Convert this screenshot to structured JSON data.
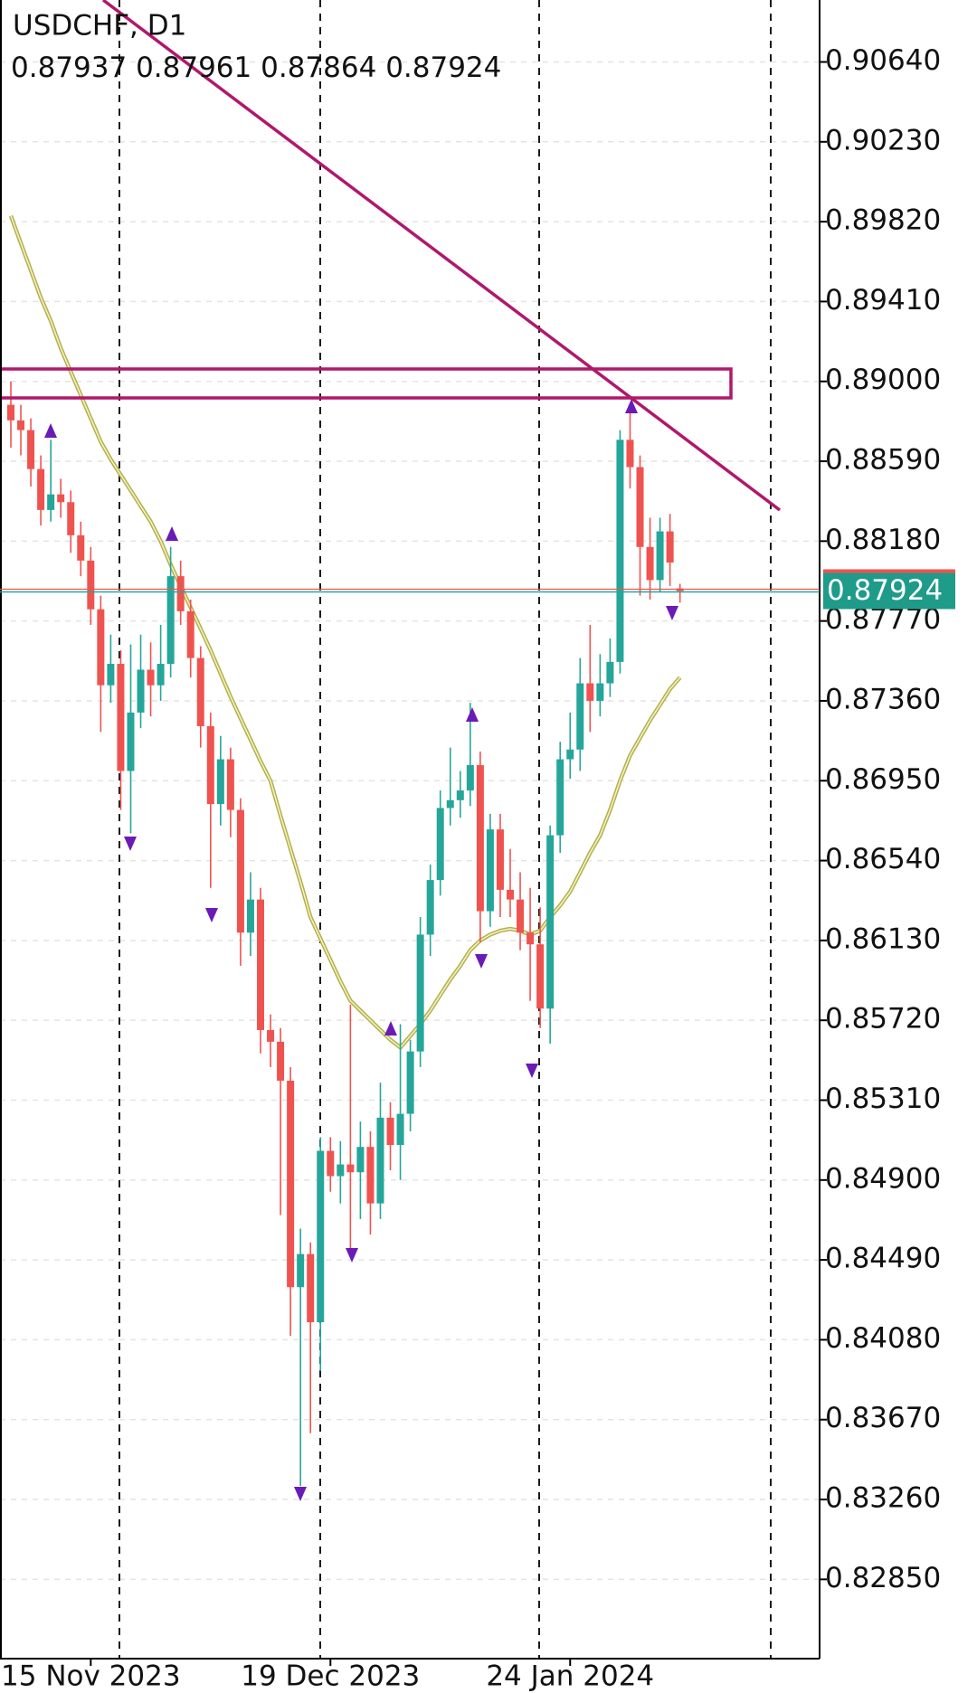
{
  "chart_data": {
    "type": "candlestick",
    "title": "USDCHF, D1",
    "up_color": "#26a69a",
    "down_color": "#ef5350",
    "categories": [
      null,
      null,
      null,
      null,
      null,
      null,
      null,
      null,
      "15 Nov 2023",
      null,
      null,
      null,
      null,
      null,
      null,
      null,
      null,
      null,
      null,
      null,
      null,
      null,
      null,
      null,
      null,
      null,
      null,
      null,
      null,
      null,
      null,
      null,
      "19 Dec 2023",
      null,
      null,
      null,
      null,
      null,
      null,
      null,
      null,
      null,
      null,
      null,
      null,
      null,
      null,
      null,
      null,
      null,
      null,
      null,
      null,
      null,
      null,
      null,
      "24 Jan 2024",
      null,
      null,
      null,
      null,
      null,
      null,
      null,
      null,
      null,
      null,
      null
    ],
    "open": [
      0.8888,
      0.888,
      0.8875,
      0.8855,
      0.8834,
      0.8842,
      0.8838,
      0.8821,
      0.8808,
      0.8783,
      0.8744,
      0.8755,
      0.87,
      0.873,
      0.8752,
      0.8744,
      0.8755,
      0.88,
      0.8782,
      0.8758,
      0.8723,
      0.8683,
      0.8706,
      0.868,
      0.8617,
      0.8634,
      0.8567,
      0.8561,
      0.8541,
      0.8435,
      0.8452,
      0.8417,
      0.8505,
      0.8492,
      0.8498,
      0.8494,
      0.8507,
      0.8478,
      0.8522,
      0.8508,
      0.8524,
      0.8556,
      0.8616,
      0.8644,
      0.8681,
      0.8685,
      0.869,
      0.8703,
      0.8628,
      0.867,
      0.8639,
      0.8634,
      0.8617,
      0.8611,
      0.8578,
      0.8667,
      0.8706,
      0.8711,
      0.8745,
      0.8736,
      0.8745,
      0.8756,
      0.887,
      0.8856,
      0.8815,
      0.8798,
      0.8823,
      0.87937
    ],
    "high": [
      0.89,
      0.8888,
      0.8881,
      0.8862,
      0.887,
      0.885,
      0.8844,
      0.8828,
      0.8815,
      0.879,
      0.877,
      0.8762,
      0.8765,
      0.877,
      0.8766,
      0.8775,
      0.8815,
      0.8808,
      0.8788,
      0.8764,
      0.873,
      0.8718,
      0.8712,
      0.8686,
      0.8648,
      0.864,
      0.8575,
      0.8568,
      0.8548,
      0.8465,
      0.8458,
      0.8512,
      0.8512,
      0.851,
      0.858,
      0.852,
      0.8515,
      0.854,
      0.853,
      0.857,
      0.8562,
      0.8625,
      0.8652,
      0.869,
      0.8712,
      0.87,
      0.8735,
      0.871,
      0.8678,
      0.8678,
      0.866,
      0.8648,
      0.864,
      0.863,
      0.8672,
      0.8715,
      0.873,
      0.8758,
      0.8775,
      0.876,
      0.8768,
      0.8875,
      0.8888,
      0.8862,
      0.883,
      0.883,
      0.8832,
      0.87961
    ],
    "low": [
      0.8866,
      0.8862,
      0.8846,
      0.8826,
      0.8828,
      0.883,
      0.8812,
      0.88,
      0.8775,
      0.872,
      0.8735,
      0.868,
      0.8668,
      0.8722,
      0.8728,
      0.8736,
      0.8748,
      0.8775,
      0.8748,
      0.8712,
      0.864,
      0.8672,
      0.8666,
      0.86,
      0.8605,
      0.8555,
      0.8548,
      0.8472,
      0.841,
      0.8333,
      0.836,
      0.8392,
      0.8484,
      0.8478,
      0.8455,
      0.847,
      0.8462,
      0.847,
      0.8495,
      0.849,
      0.8515,
      0.8548,
      0.8605,
      0.8636,
      0.8672,
      0.8676,
      0.8682,
      0.8612,
      0.862,
      0.8625,
      0.8625,
      0.8608,
      0.8582,
      0.8568,
      0.856,
      0.8658,
      0.8696,
      0.87,
      0.872,
      0.8728,
      0.8738,
      0.875,
      0.8845,
      0.879,
      0.8788,
      0.8792,
      0.8795,
      0.87864
    ],
    "close": [
      0.888,
      0.8875,
      0.8855,
      0.8834,
      0.8842,
      0.8838,
      0.8821,
      0.8808,
      0.8783,
      0.8744,
      0.8755,
      0.87,
      0.873,
      0.8752,
      0.8744,
      0.8755,
      0.88,
      0.8782,
      0.8758,
      0.8723,
      0.8683,
      0.8706,
      0.868,
      0.8617,
      0.8634,
      0.8567,
      0.8561,
      0.8541,
      0.8435,
      0.8452,
      0.8417,
      0.8505,
      0.8492,
      0.8498,
      0.8494,
      0.8507,
      0.8478,
      0.8522,
      0.8508,
      0.8524,
      0.8556,
      0.8616,
      0.8644,
      0.8681,
      0.8685,
      0.869,
      0.8703,
      0.8628,
      0.867,
      0.8639,
      0.8634,
      0.8617,
      0.8611,
      0.8578,
      0.8667,
      0.8706,
      0.8711,
      0.8745,
      0.8736,
      0.8745,
      0.8756,
      0.887,
      0.8856,
      0.8815,
      0.8798,
      0.8823,
      0.8807,
      0.87924
    ],
    "ma": {
      "color": "#b5b04a",
      "values": [
        0.8985,
        0.8971,
        0.8957,
        0.8943,
        0.8931,
        0.8917,
        0.8905,
        0.8893,
        0.8881,
        0.8869,
        0.886,
        0.8852,
        0.8844,
        0.8836,
        0.8828,
        0.8818,
        0.8806,
        0.8795,
        0.8784,
        0.8773,
        0.8762,
        0.875,
        0.8738,
        0.8727,
        0.8716,
        0.8705,
        0.8695,
        0.8677,
        0.866,
        0.8643,
        0.8625,
        0.8614,
        0.8603,
        0.8592,
        0.8582,
        0.8577,
        0.8572,
        0.8567,
        0.8562,
        0.8558,
        0.8564,
        0.857,
        0.8577,
        0.8585,
        0.8593,
        0.86,
        0.8608,
        0.8613,
        0.8616,
        0.8618,
        0.8619,
        0.8618,
        0.8616,
        0.8618,
        0.8625,
        0.8631,
        0.8638,
        0.8648,
        0.8658,
        0.8667,
        0.868,
        0.8695,
        0.8708,
        0.8717,
        0.8726,
        0.8734,
        0.8742,
        0.8748
      ]
    },
    "ylim": [
      0.82443,
      0.90958
    ],
    "yticks": [
      {
        "value": 0.9064,
        "label": "0.90640"
      },
      {
        "value": 0.9023,
        "label": "0.90230"
      },
      {
        "value": 0.8982,
        "label": "0.89820"
      },
      {
        "value": 0.8941,
        "label": "0.89410"
      },
      {
        "value": 0.89,
        "label": "0.89000"
      },
      {
        "value": 0.8859,
        "label": "0.88590"
      },
      {
        "value": 0.8818,
        "label": "0.88180"
      },
      {
        "value": 0.8777,
        "label": "0.87770"
      },
      {
        "value": 0.8736,
        "label": "0.87360"
      },
      {
        "value": 0.8695,
        "label": "0.86950"
      },
      {
        "value": 0.8654,
        "label": "0.86540"
      },
      {
        "value": 0.8613,
        "label": "0.86130"
      },
      {
        "value": 0.8572,
        "label": "0.85720"
      },
      {
        "value": 0.8531,
        "label": "0.85310"
      },
      {
        "value": 0.849,
        "label": "0.84900"
      },
      {
        "value": 0.8449,
        "label": "0.84490"
      },
      {
        "value": 0.8408,
        "label": "0.84080"
      },
      {
        "value": 0.8367,
        "label": "0.83670"
      },
      {
        "value": 0.8326,
        "label": "0.83260"
      },
      {
        "value": 0.8285,
        "label": "0.82850"
      }
    ],
    "grid": true
  }
}
